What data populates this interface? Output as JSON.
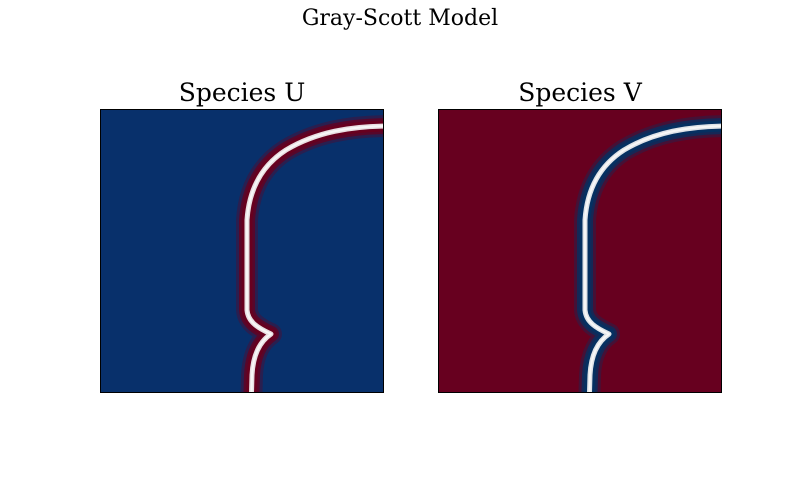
{
  "figure": {
    "title": "Gray-Scott Model"
  },
  "chart_data": [
    {
      "type": "heatmap",
      "title": "Species U",
      "colormap": "RdBu_r",
      "background_color": "#08306b",
      "front_color_outer": "#67001f",
      "front_color_inner": "#f7f7f7",
      "axes_visible": false
    },
    {
      "type": "heatmap",
      "title": "Species V",
      "colormap": "RdBu_r",
      "background_color": "#67001f",
      "front_color_outer": "#053061",
      "front_color_inner": "#f7f7f7",
      "axes_visible": false
    }
  ]
}
